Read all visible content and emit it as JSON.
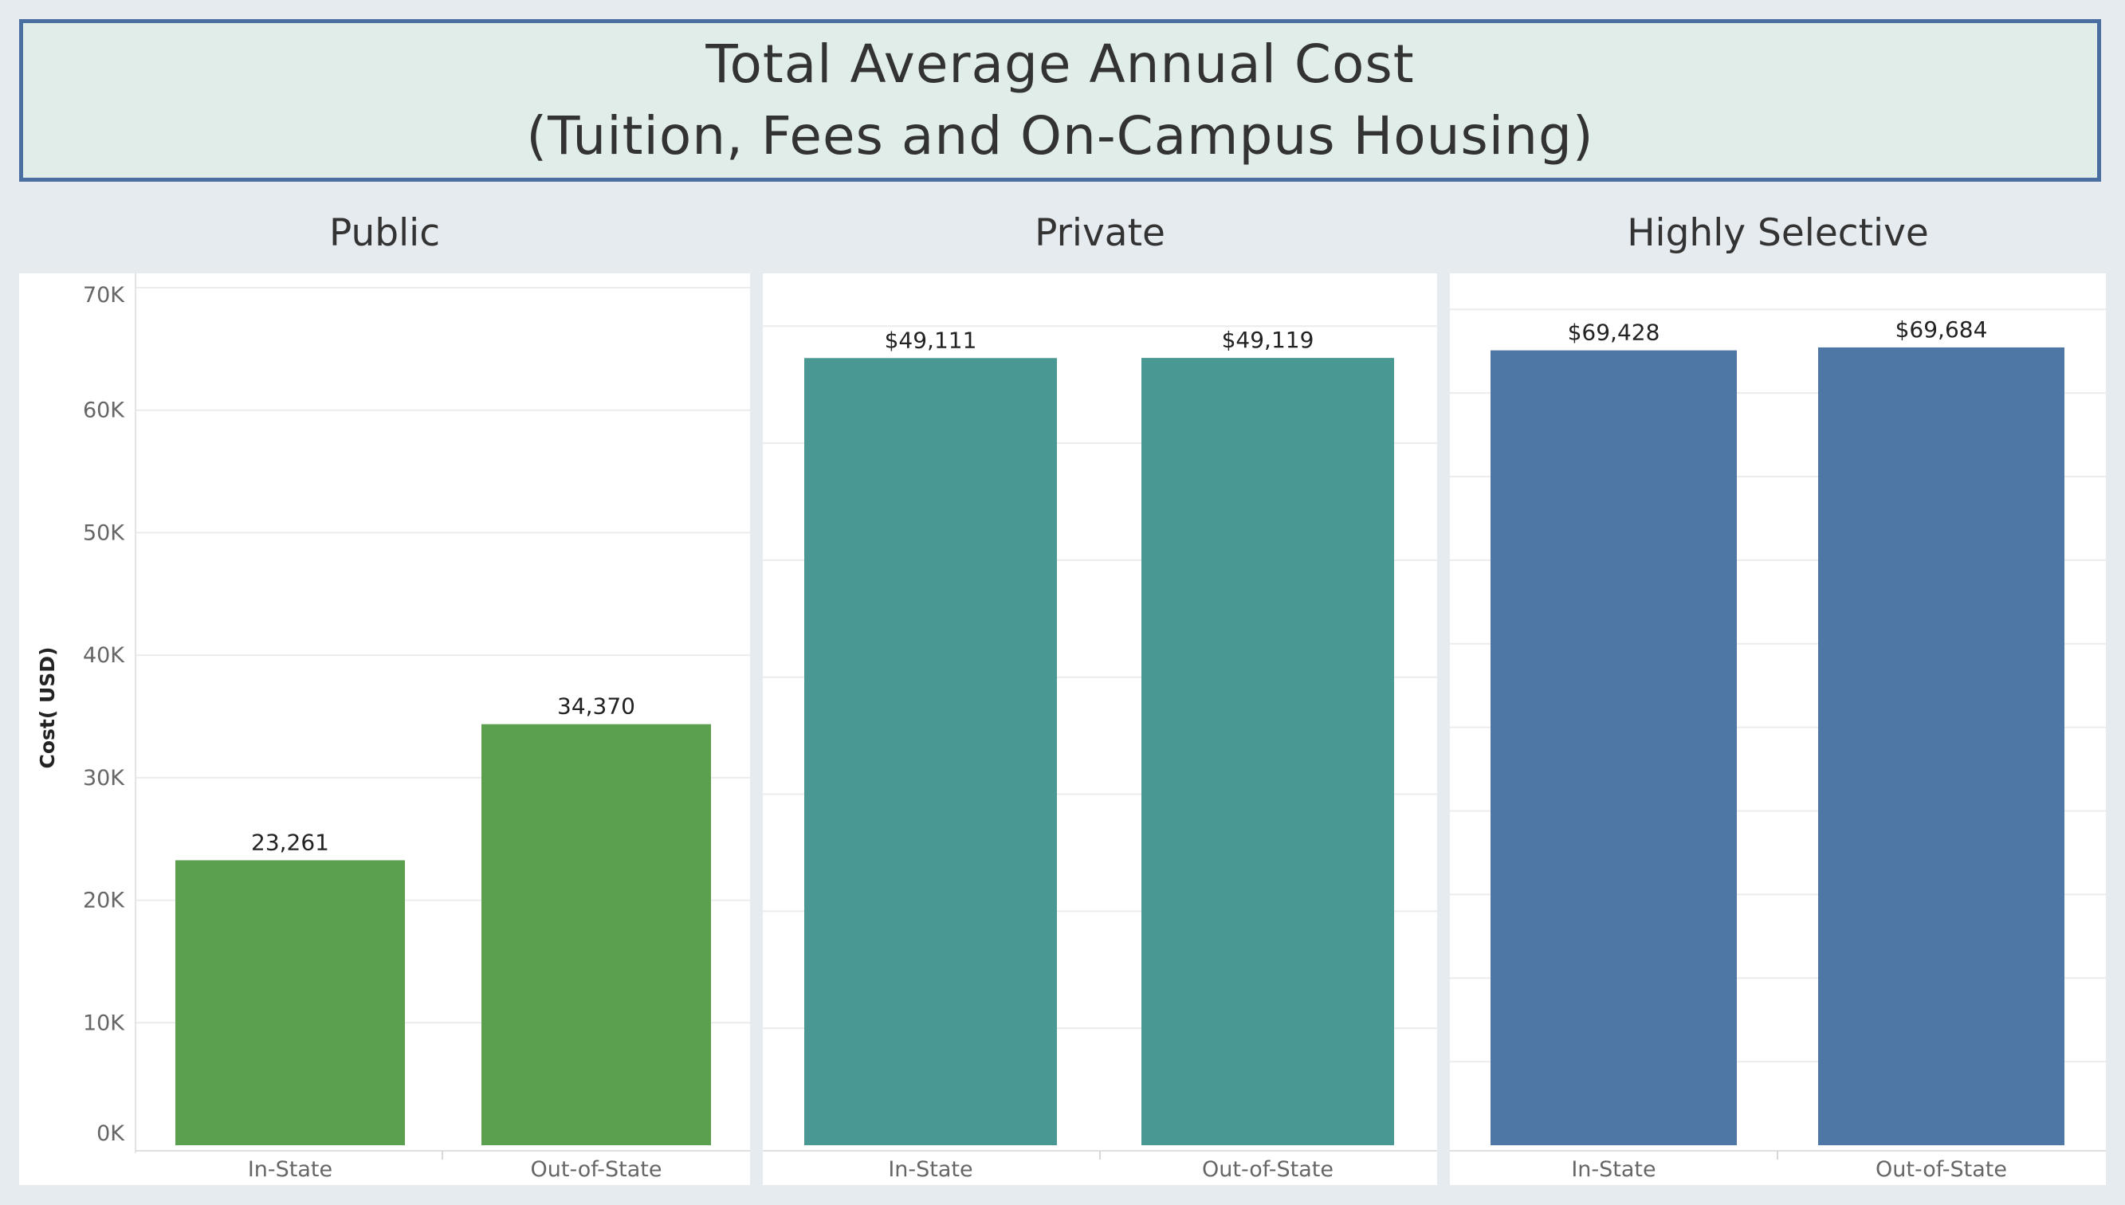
{
  "title": {
    "line1": "Total Average Annual Cost",
    "line2": "(Tuition, Fees and On-Campus Housing)"
  },
  "ylabel": "Cost( USD)",
  "y_ticks": [
    "0K",
    "10K",
    "20K",
    "30K",
    "40K",
    "50K",
    "60K",
    "70K"
  ],
  "colors": {
    "public": "#5ba04f",
    "private": "#4a9893",
    "selective": "#4e77a5"
  },
  "chart_data": [
    {
      "type": "bar",
      "title": "Public",
      "categories": [
        "In-State",
        "Out-of-State"
      ],
      "values": [
        23261,
        34370
      ],
      "value_labels": [
        "23,261",
        "34,370"
      ],
      "ylabel": "Cost( USD)",
      "ylim": [
        0,
        70000
      ]
    },
    {
      "type": "bar",
      "title": "Private",
      "categories": [
        "In-State",
        "Out-of-State"
      ],
      "values": [
        49111,
        49119
      ],
      "value_labels": [
        "$49,111",
        "$49,119"
      ],
      "ylim": [
        0,
        53500
      ]
    },
    {
      "type": "bar",
      "title": "Highly Selective",
      "categories": [
        "In-State",
        "Out-of-State"
      ],
      "values": [
        69428,
        69684
      ],
      "value_labels": [
        "$69,428",
        "$69,684"
      ],
      "ylim": [
        0,
        74900
      ]
    }
  ]
}
